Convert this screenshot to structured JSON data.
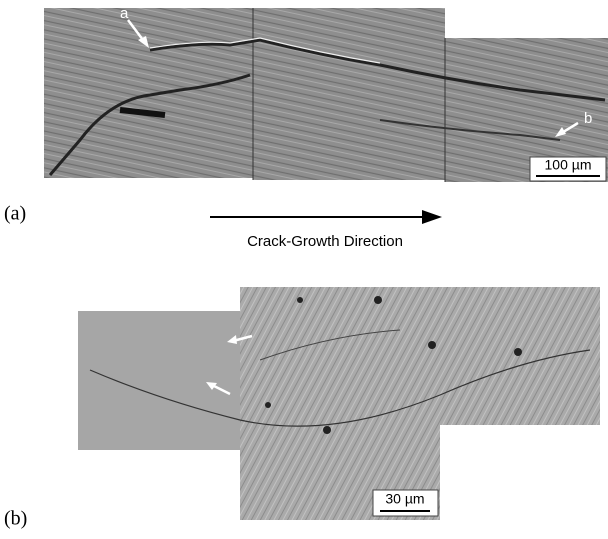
{
  "panel_a": {
    "label": "(a)",
    "pointer_a": "a",
    "pointer_b": "b",
    "scale_bar": "100 µm"
  },
  "direction_label": "Crack-Growth Direction",
  "panel_b": {
    "label": "(b)",
    "scale_bar": "30 µm"
  }
}
